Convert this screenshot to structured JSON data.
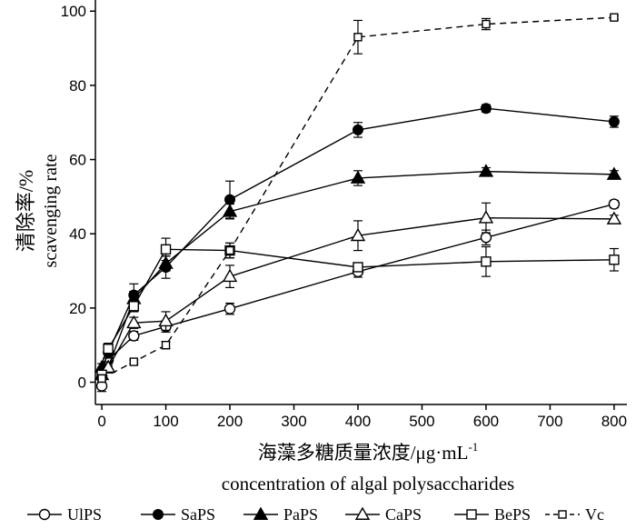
{
  "chart_data": {
    "type": "line",
    "xlabel_cn": "海藻多糖质量浓度/μg·mL",
    "xlabel_sup": "-1",
    "xlabel_en": "concentration of algal polysaccharides",
    "ylabel_cn": "清除率/%",
    "ylabel_en": "scavenging rate",
    "xlim": [
      -10,
      820
    ],
    "ylim": [
      -6,
      103
    ],
    "x_ticks": [
      0,
      100,
      200,
      300,
      400,
      500,
      600,
      700,
      800
    ],
    "y_ticks": [
      0,
      20,
      40,
      60,
      80,
      100
    ],
    "x_tick_labels": [
      "0",
      "100",
      "200",
      "300",
      "400",
      "500",
      "600",
      "700",
      "800"
    ],
    "y_tick_labels": [
      "0",
      "20",
      "40",
      "60",
      "80",
      "100"
    ],
    "legend_position": "bottom",
    "series": [
      {
        "name": "UlPS",
        "marker": "circle-open",
        "dashed": false,
        "x": [
          0,
          10,
          50,
          100,
          200,
          400,
          600,
          800
        ],
        "values": [
          -1,
          6,
          12.5,
          15,
          19.8,
          29.8,
          39,
          48
        ],
        "errors": [
          1.5,
          1.5,
          1.2,
          1.5,
          1.5,
          1.5,
          2,
          1
        ]
      },
      {
        "name": "SaPS",
        "marker": "circle-filled",
        "dashed": false,
        "x": [
          0,
          10,
          50,
          100,
          200,
          400,
          600,
          800
        ],
        "values": [
          3,
          8,
          23.5,
          31,
          49.2,
          68,
          73.8,
          70.2
        ],
        "errors": [
          1,
          1.5,
          3,
          3,
          5,
          2,
          1,
          1.5
        ]
      },
      {
        "name": "PaPS",
        "marker": "triangle-filled",
        "dashed": false,
        "x": [
          0,
          10,
          50,
          100,
          200,
          400,
          600,
          800
        ],
        "values": [
          4,
          4,
          22.5,
          32,
          46,
          55,
          56.8,
          56
        ],
        "errors": [
          1,
          1.5,
          2,
          2,
          2,
          2,
          1,
          1
        ]
      },
      {
        "name": "CaPS",
        "marker": "triangle-open",
        "dashed": false,
        "x": [
          0,
          10,
          50,
          100,
          200,
          400,
          600,
          800
        ],
        "values": [
          2,
          4,
          16,
          16.5,
          28.5,
          39.5,
          44.3,
          44
        ],
        "errors": [
          1,
          1,
          1.5,
          2.5,
          3,
          4,
          4,
          1
        ]
      },
      {
        "name": "BePS",
        "marker": "square-open",
        "dashed": false,
        "x": [
          0,
          10,
          50,
          100,
          200,
          400,
          600,
          800
        ],
        "values": [
          2,
          9,
          20.5,
          35.8,
          35.5,
          31,
          32.5,
          33
        ],
        "errors": [
          1,
          1.5,
          1.5,
          3,
          2,
          1,
          4,
          3
        ]
      },
      {
        "name": "Vc",
        "marker": "square-open-small",
        "dashed": true,
        "x": [
          0,
          50,
          100,
          200,
          400,
          600,
          800
        ],
        "values": [
          1,
          5.5,
          10,
          35.5,
          93,
          96.5,
          98.3
        ],
        "errors": [
          1,
          0.5,
          1,
          2,
          4.5,
          1.5,
          0.5
        ]
      }
    ]
  }
}
